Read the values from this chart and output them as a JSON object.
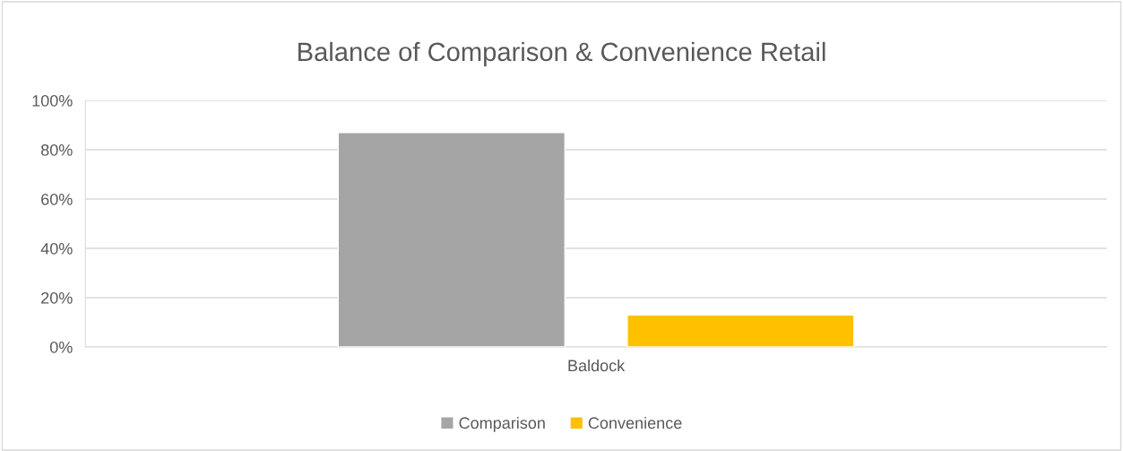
{
  "chart_data": {
    "type": "bar",
    "title": "Balance of Comparison & Convenience Retail",
    "categories": [
      "Baldock"
    ],
    "series": [
      {
        "name": "Comparison",
        "color": "#a5a5a5",
        "values": [
          87
        ]
      },
      {
        "name": "Convenience",
        "color": "#ffc000",
        "values": [
          13
        ]
      }
    ],
    "ylim": [
      0,
      100
    ],
    "yticks": [
      {
        "value": 0,
        "label": "0%"
      },
      {
        "value": 20,
        "label": "20%"
      },
      {
        "value": 40,
        "label": "40%"
      },
      {
        "value": 60,
        "label": "60%"
      },
      {
        "value": 80,
        "label": "80%"
      },
      {
        "value": 100,
        "label": "100%"
      }
    ],
    "grid": "y",
    "legend": "bottom"
  }
}
